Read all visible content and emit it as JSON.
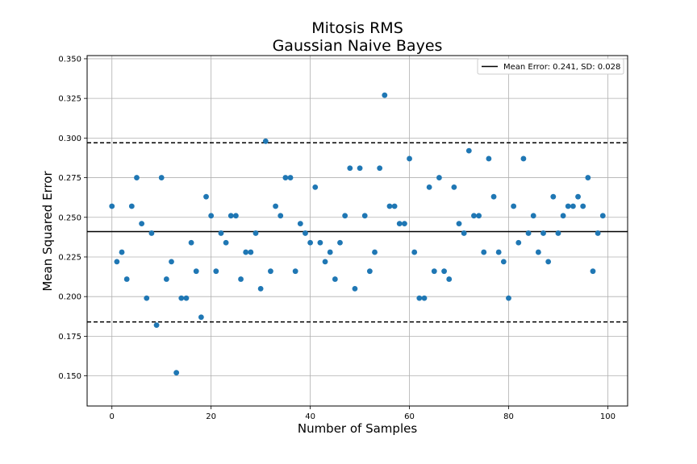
{
  "chart_data": {
    "type": "scatter",
    "title": "Mitosis RMS",
    "subtitle": "Gaussian Naive Bayes",
    "xlabel": "Number of Samples",
    "ylabel": "Mean Squared Error",
    "xlim": [
      -5,
      104
    ],
    "ylim": [
      0.131,
      0.352
    ],
    "xticks": [
      0,
      20,
      40,
      60,
      80,
      100
    ],
    "yticks": [
      0.15,
      0.175,
      0.2,
      0.225,
      0.25,
      0.275,
      0.3,
      0.325,
      0.35
    ],
    "xtick_labels": [
      "0",
      "20",
      "40",
      "60",
      "80",
      "100"
    ],
    "ytick_labels": [
      "0.150",
      "0.175",
      "0.200",
      "0.225",
      "0.250",
      "0.275",
      "0.300",
      "0.325",
      "0.350"
    ],
    "grid": true,
    "legend_position": "top-right",
    "legend_label": "Mean Error: 0.241, SD: 0.028",
    "marker_color": "#1f77b4",
    "reference_lines": [
      {
        "kind": "mean",
        "value": 0.241,
        "style": "solid",
        "color": "#000000"
      },
      {
        "kind": "mean+2sd",
        "value": 0.297,
        "style": "dashed",
        "color": "#000000"
      },
      {
        "kind": "mean-2sd",
        "value": 0.184,
        "style": "dashed",
        "color": "#000000"
      }
    ],
    "x": [
      0,
      1,
      2,
      3,
      4,
      5,
      6,
      7,
      8,
      9,
      10,
      11,
      12,
      13,
      14,
      15,
      16,
      17,
      18,
      19,
      20,
      21,
      22,
      23,
      24,
      25,
      26,
      27,
      28,
      29,
      30,
      31,
      32,
      33,
      34,
      35,
      36,
      37,
      38,
      39,
      40,
      41,
      42,
      43,
      44,
      45,
      46,
      47,
      48,
      49,
      50,
      51,
      52,
      53,
      54,
      55,
      56,
      57,
      58,
      59,
      60,
      61,
      62,
      63,
      64,
      65,
      66,
      67,
      68,
      69,
      70,
      71,
      72,
      73,
      74,
      75,
      76,
      77,
      78,
      79,
      80,
      81,
      82,
      83,
      84,
      85,
      86,
      87,
      88,
      89,
      90,
      91,
      92,
      93,
      94,
      95,
      96,
      97,
      98,
      99
    ],
    "y": [
      0.257,
      0.222,
      0.228,
      0.211,
      0.257,
      0.275,
      0.246,
      0.199,
      0.24,
      0.182,
      0.275,
      0.211,
      0.222,
      0.152,
      0.199,
      0.199,
      0.234,
      0.216,
      0.187,
      0.263,
      0.251,
      0.216,
      0.24,
      0.234,
      0.251,
      0.251,
      0.211,
      0.228,
      0.228,
      0.24,
      0.205,
      0.298,
      0.216,
      0.257,
      0.251,
      0.275,
      0.275,
      0.216,
      0.246,
      0.24,
      0.234,
      0.269,
      0.234,
      0.222,
      0.228,
      0.211,
      0.234,
      0.251,
      0.281,
      0.205,
      0.281,
      0.251,
      0.216,
      0.228,
      0.281,
      0.327,
      0.257,
      0.257,
      0.246,
      0.246,
      0.287,
      0.228,
      0.199,
      0.199,
      0.269,
      0.216,
      0.275,
      0.216,
      0.211,
      0.269,
      0.246,
      0.24,
      0.292,
      0.251,
      0.251,
      0.228,
      0.287,
      0.263,
      0.228,
      0.222,
      0.199,
      0.257,
      0.234,
      0.287,
      0.24,
      0.251,
      0.228,
      0.24,
      0.222,
      0.263,
      0.24,
      0.251,
      0.257,
      0.257,
      0.263,
      0.257,
      0.275,
      0.216,
      0.24,
      0.251
    ]
  }
}
